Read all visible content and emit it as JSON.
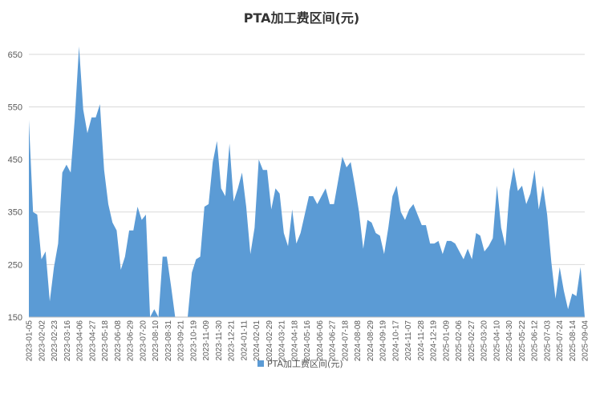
{
  "chart_data": {
    "type": "area",
    "title": "PTA加工费区间(元)",
    "legend": {
      "position": "bottom",
      "label": "PTA加工费区间(元)"
    },
    "colors": {
      "area": "#5b9bd5",
      "grid": "#d9d9d9",
      "axis": "#bfbfbf",
      "text": "#595959"
    },
    "grid": true,
    "ylim": [
      150,
      700
    ],
    "yticks": [
      150,
      250,
      350,
      450,
      550,
      650
    ],
    "x_tick_labels": [
      "2023-01-05",
      "2023-02-02",
      "2023-02-23",
      "2023-03-16",
      "2023-04-06",
      "2023-04-27",
      "2023-05-18",
      "2023-06-08",
      "2023-06-29",
      "2023-07-20",
      "2023-08-10",
      "2023-08-31",
      "2023-09-21",
      "2023-10-19",
      "2023-11-09",
      "2023-11-30",
      "2023-12-21",
      "2024-01-11",
      "2024-02-01",
      "2024-02-29",
      "2024-03-21",
      "2024-04-18",
      "2024-05-16",
      "2024-06-06",
      "2024-06-27",
      "2024-07-18",
      "2024-08-08",
      "2024-08-29",
      "2024-09-19",
      "2024-10-17",
      "2024-11-07",
      "2024-11-28",
      "2024-12-19",
      "2025-01-09",
      "2025-02-06",
      "2025-02-27",
      "2025-03-20",
      "2025-04-10",
      "2025-04-30",
      "2025-05-22",
      "2025-06-12",
      "2025-07-03",
      "2025-07-24",
      "2025-08-14",
      "2025-09-04"
    ],
    "values": [
      525,
      350,
      345,
      260,
      275,
      180,
      245,
      290,
      425,
      440,
      425,
      530,
      665,
      545,
      500,
      530,
      530,
      555,
      430,
      365,
      330,
      315,
      240,
      265,
      315,
      315,
      360,
      335,
      345,
      150,
      165,
      150,
      265,
      265,
      210,
      150,
      150,
      150,
      150,
      235,
      260,
      265,
      360,
      365,
      445,
      485,
      395,
      380,
      480,
      370,
      395,
      425,
      360,
      270,
      320,
      450,
      430,
      430,
      355,
      395,
      385,
      310,
      285,
      355,
      290,
      310,
      345,
      380,
      380,
      365,
      380,
      395,
      365,
      365,
      410,
      455,
      435,
      445,
      400,
      350,
      280,
      335,
      330,
      310,
      305,
      270,
      320,
      380,
      400,
      350,
      335,
      355,
      365,
      345,
      325,
      325,
      290,
      290,
      295,
      270,
      295,
      295,
      290,
      275,
      260,
      280,
      260,
      310,
      305,
      275,
      285,
      300,
      400,
      320,
      285,
      390,
      435,
      390,
      400,
      365,
      385,
      430,
      355,
      400,
      345,
      255,
      185,
      245,
      200,
      165,
      195,
      190,
      245,
      150
    ]
  }
}
